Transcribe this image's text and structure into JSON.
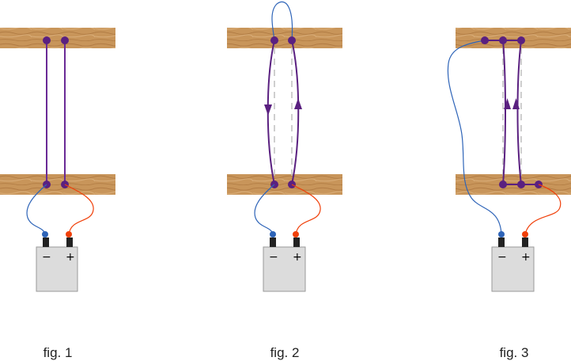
{
  "figures": [
    {
      "caption": "fig. 1",
      "battery": {
        "minus": "−",
        "plus": "+"
      }
    },
    {
      "caption": "fig. 2",
      "battery": {
        "minus": "−",
        "plus": "+"
      }
    },
    {
      "caption": "fig. 3",
      "battery": {
        "minus": "−",
        "plus": "+"
      }
    }
  ],
  "colors": {
    "wire": "#6a2a96",
    "node": "#5a2080",
    "negative_lead": "#2e64b8",
    "positive_lead": "#f0400a",
    "battery_body": "#dcdcdc",
    "wood": "#c8955a",
    "guide_dashed": "#bfbfbf"
  }
}
